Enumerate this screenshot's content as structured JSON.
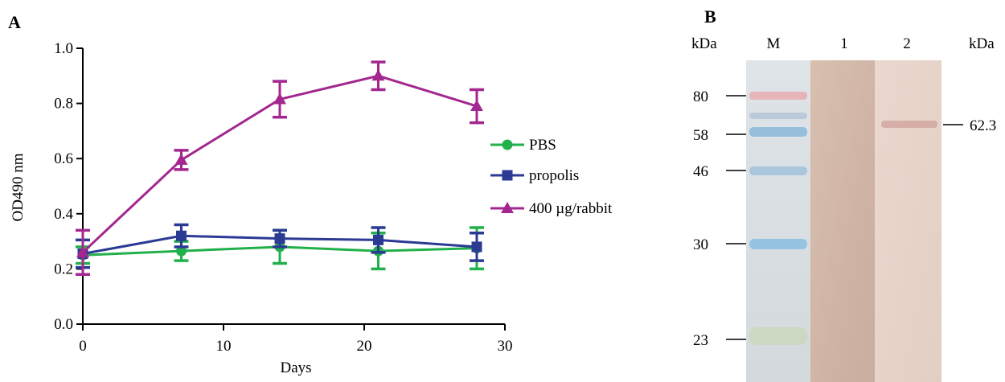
{
  "panel_a": {
    "label": "A",
    "chart_data": {
      "type": "line",
      "xlabel": "Days",
      "ylabel": "OD490 nm",
      "xlim": [
        0,
        30
      ],
      "ylim": [
        0.0,
        1.0
      ],
      "x_ticks": [
        0,
        10,
        20,
        30
      ],
      "x_tick_labels": [
        "0",
        "10",
        "20",
        "30"
      ],
      "y_ticks": [
        0.0,
        0.2,
        0.4,
        0.6,
        0.8,
        1.0
      ],
      "y_tick_labels": [
        "0.0",
        "0.2",
        "0.4",
        "0.6",
        "0.8",
        "1.0"
      ],
      "grid": false,
      "legend_position": "right",
      "series": [
        {
          "name": "PBS",
          "color": "#22b04b",
          "marker": "circle",
          "x": [
            0,
            7,
            14,
            21,
            28
          ],
          "y": [
            0.25,
            0.265,
            0.28,
            0.265,
            0.275
          ],
          "err": [
            0.03,
            0.035,
            0.06,
            0.065,
            0.075
          ]
        },
        {
          "name": "propolis",
          "color": "#2b3a93",
          "marker": "square",
          "x": [
            0,
            7,
            14,
            21,
            28
          ],
          "y": [
            0.255,
            0.32,
            0.31,
            0.305,
            0.28
          ],
          "err": [
            0.05,
            0.04,
            0.03,
            0.045,
            0.05
          ]
        },
        {
          "name": "400 µg/rabbit",
          "color": "#a3278f",
          "marker": "triangle",
          "x": [
            0,
            7,
            14,
            21,
            28
          ],
          "y": [
            0.26,
            0.595,
            0.815,
            0.9,
            0.79
          ],
          "err": [
            0.08,
            0.035,
            0.065,
            0.05,
            0.06
          ]
        }
      ]
    }
  },
  "panel_b": {
    "label": "B",
    "kda_left": "kDa",
    "kda_right": "kDa",
    "lane_labels": [
      "M",
      "1",
      "2"
    ],
    "marker_bands": [
      "80",
      "58",
      "46",
      "30",
      "23"
    ],
    "marker_band_values": [
      80,
      58,
      46,
      30,
      23
    ],
    "detected_band": "62.3",
    "detected_band_value": 62.3
  }
}
